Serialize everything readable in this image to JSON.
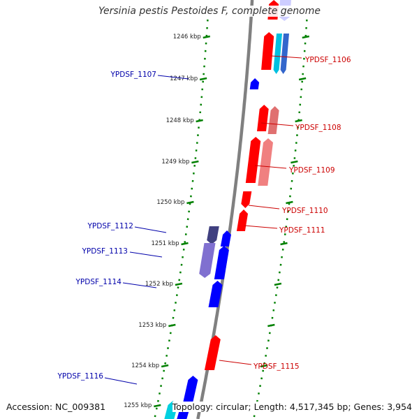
{
  "title": "Yersinia pestis Pestoides F, complete genome",
  "footer": {
    "accession": "Accession: NC_009381",
    "summary": "Topology: circular; Length: 4,517,345 bp; Genes: 3,954"
  },
  "colors": {
    "backbone": "#808080",
    "plus_strand": "#ff0000",
    "minus_strand": "#0000ff",
    "tick": "#008000",
    "plus_label": "#cc0000",
    "minus_label": "#0000aa"
  },
  "scale_labels": [
    "1246 kbp",
    "1247 kbp",
    "1248 kbp",
    "1249 kbp",
    "1250 kbp",
    "1251 kbp",
    "1252 kbp",
    "1253 kbp",
    "1254 kbp",
    "1255 kbp"
  ],
  "gene_labels": [
    {
      "text": "YPDSF_1106",
      "strand": "plus"
    },
    {
      "text": "YPDSF_1107",
      "strand": "minus"
    },
    {
      "text": "YPDSF_1108",
      "strand": "plus"
    },
    {
      "text": "YPDSF_1109",
      "strand": "plus"
    },
    {
      "text": "YPDSF_1110",
      "strand": "plus"
    },
    {
      "text": "YPDSF_1111",
      "strand": "plus"
    },
    {
      "text": "YPDSF_1112",
      "strand": "minus"
    },
    {
      "text": "YPDSF_1113",
      "strand": "minus"
    },
    {
      "text": "YPDSF_1114",
      "strand": "minus"
    },
    {
      "text": "YPDSF_1115",
      "strand": "plus"
    },
    {
      "text": "YPDSF_1116",
      "strand": "minus"
    }
  ]
}
